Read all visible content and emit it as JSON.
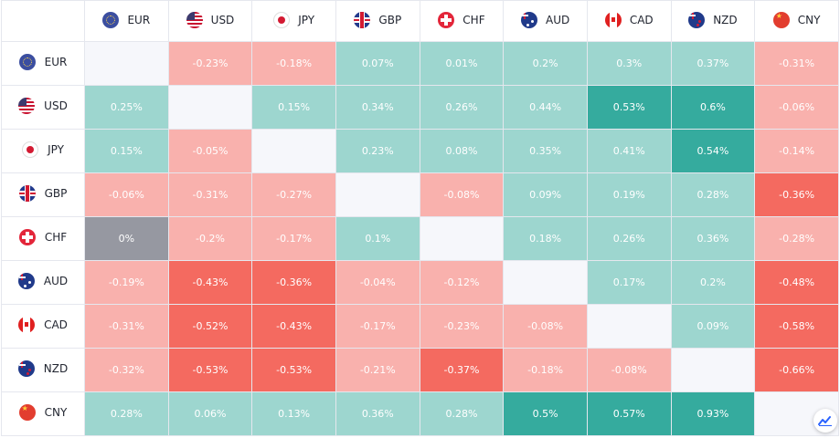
{
  "currencies": [
    {
      "code": "EUR",
      "flag_icon": "eu-flag-icon"
    },
    {
      "code": "USD",
      "flag_icon": "us-flag-icon"
    },
    {
      "code": "JPY",
      "flag_icon": "japan-flag-icon"
    },
    {
      "code": "GBP",
      "flag_icon": "uk-flag-icon"
    },
    {
      "code": "CHF",
      "flag_icon": "switzerland-flag-icon"
    },
    {
      "code": "AUD",
      "flag_icon": "australia-flag-icon"
    },
    {
      "code": "CAD",
      "flag_icon": "canada-flag-icon"
    },
    {
      "code": "NZD",
      "flag_icon": "new-zealand-flag-icon"
    },
    {
      "code": "CNY",
      "flag_icon": "china-flag-icon"
    }
  ],
  "matrix": [
    [
      null,
      "-0.23%",
      "-0.18%",
      "0.07%",
      "0.01%",
      "0.2%",
      "0.3%",
      "0.37%",
      "-0.31%"
    ],
    [
      "0.25%",
      null,
      "0.15%",
      "0.34%",
      "0.26%",
      "0.44%",
      "0.53%",
      "0.6%",
      "-0.06%"
    ],
    [
      "0.15%",
      "-0.05%",
      null,
      "0.23%",
      "0.08%",
      "0.35%",
      "0.41%",
      "0.54%",
      "-0.14%"
    ],
    [
      "-0.06%",
      "-0.31%",
      "-0.27%",
      null,
      "-0.08%",
      "0.09%",
      "0.19%",
      "0.28%",
      "-0.36%"
    ],
    [
      "0%",
      "-0.2%",
      "-0.17%",
      "0.1%",
      null,
      "0.18%",
      "0.26%",
      "0.36%",
      "-0.28%"
    ],
    [
      "-0.19%",
      "-0.43%",
      "-0.36%",
      "-0.04%",
      "-0.12%",
      null,
      "0.17%",
      "0.2%",
      "-0.48%"
    ],
    [
      "-0.31%",
      "-0.52%",
      "-0.43%",
      "-0.17%",
      "-0.23%",
      "-0.08%",
      null,
      "0.09%",
      "-0.58%"
    ],
    [
      "-0.32%",
      "-0.53%",
      "-0.53%",
      "-0.21%",
      "-0.37%",
      "-0.18%",
      "-0.08%",
      null,
      "-0.66%"
    ],
    [
      "0.28%",
      "0.06%",
      "0.13%",
      "0.36%",
      "0.28%",
      "0.5%",
      "0.57%",
      "0.93%",
      null
    ]
  ],
  "colors": {
    "positive_light": "#9dd6cf",
    "positive_strong": "#35ab9e",
    "negative_light": "#f9b1ad",
    "negative_strong": "#f46a60",
    "neutral": "#9698a1",
    "diagonal": "#f6f7fb",
    "text_dark": "#222631",
    "accent": "#2962ff"
  },
  "widget": {
    "logo_icon": "tradingview-logo-icon"
  }
}
